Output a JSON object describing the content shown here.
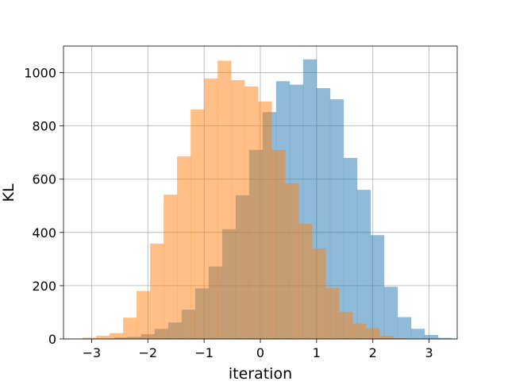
{
  "chart_data": {
    "type": "histogram",
    "xlabel": "iteration",
    "ylabel": "KL",
    "xlim": [
      -3.5,
      3.5
    ],
    "ylim": [
      0,
      1100
    ],
    "xticks": [
      -3,
      -2,
      -1,
      0,
      1,
      2,
      3
    ],
    "xtick_labels": [
      "−3",
      "−2",
      "−1",
      "0",
      "1",
      "2",
      "3"
    ],
    "yticks": [
      0,
      200,
      400,
      600,
      800,
      1000
    ],
    "ytick_labels": [
      "0",
      "200",
      "400",
      "600",
      "800",
      "1000"
    ],
    "grid": true,
    "legend": false,
    "series": [
      {
        "color": "#1f77b4",
        "alpha": 0.5,
        "bins": [
          {
            "x0": -2.6,
            "x1": -2.36,
            "count": 5
          },
          {
            "x0": -2.36,
            "x1": -2.12,
            "count": 8
          },
          {
            "x0": -2.12,
            "x1": -1.88,
            "count": 18
          },
          {
            "x0": -1.88,
            "x1": -1.64,
            "count": 38
          },
          {
            "x0": -1.64,
            "x1": -1.4,
            "count": 62
          },
          {
            "x0": -1.4,
            "x1": -1.16,
            "count": 110
          },
          {
            "x0": -1.16,
            "x1": -0.92,
            "count": 190
          },
          {
            "x0": -0.92,
            "x1": -0.68,
            "count": 272
          },
          {
            "x0": -0.68,
            "x1": -0.44,
            "count": 412
          },
          {
            "x0": -0.44,
            "x1": -0.2,
            "count": 540
          },
          {
            "x0": -0.2,
            "x1": 0.04,
            "count": 710
          },
          {
            "x0": 0.04,
            "x1": 0.28,
            "count": 852
          },
          {
            "x0": 0.28,
            "x1": 0.52,
            "count": 968
          },
          {
            "x0": 0.52,
            "x1": 0.76,
            "count": 955
          },
          {
            "x0": 0.76,
            "x1": 1.0,
            "count": 1050
          },
          {
            "x0": 1.0,
            "x1": 1.24,
            "count": 942
          },
          {
            "x0": 1.24,
            "x1": 1.48,
            "count": 900
          },
          {
            "x0": 1.48,
            "x1": 1.72,
            "count": 680
          },
          {
            "x0": 1.72,
            "x1": 1.96,
            "count": 560
          },
          {
            "x0": 1.96,
            "x1": 2.2,
            "count": 390
          },
          {
            "x0": 2.2,
            "x1": 2.44,
            "count": 196
          },
          {
            "x0": 2.44,
            "x1": 2.68,
            "count": 82
          },
          {
            "x0": 2.68,
            "x1": 2.92,
            "count": 38
          },
          {
            "x0": 2.92,
            "x1": 3.16,
            "count": 15
          },
          {
            "x0": 3.16,
            "x1": 3.4,
            "count": 4
          }
        ]
      },
      {
        "color": "#ff7f0e",
        "alpha": 0.5,
        "bins": [
          {
            "x0": -3.16,
            "x1": -2.92,
            "count": 5
          },
          {
            "x0": -2.92,
            "x1": -2.68,
            "count": 12
          },
          {
            "x0": -2.68,
            "x1": -2.44,
            "count": 22
          },
          {
            "x0": -2.44,
            "x1": -2.2,
            "count": 80
          },
          {
            "x0": -2.2,
            "x1": -1.96,
            "count": 180
          },
          {
            "x0": -1.96,
            "x1": -1.72,
            "count": 358
          },
          {
            "x0": -1.72,
            "x1": -1.48,
            "count": 542
          },
          {
            "x0": -1.48,
            "x1": -1.24,
            "count": 686
          },
          {
            "x0": -1.24,
            "x1": -1.0,
            "count": 862
          },
          {
            "x0": -1.0,
            "x1": -0.76,
            "count": 978
          },
          {
            "x0": -0.76,
            "x1": -0.52,
            "count": 1045
          },
          {
            "x0": -0.52,
            "x1": -0.28,
            "count": 972
          },
          {
            "x0": -0.28,
            "x1": -0.04,
            "count": 948
          },
          {
            "x0": -0.04,
            "x1": 0.2,
            "count": 892
          },
          {
            "x0": 0.2,
            "x1": 0.44,
            "count": 710
          },
          {
            "x0": 0.44,
            "x1": 0.68,
            "count": 585
          },
          {
            "x0": 0.68,
            "x1": 0.92,
            "count": 432
          },
          {
            "x0": 0.92,
            "x1": 1.16,
            "count": 340
          },
          {
            "x0": 1.16,
            "x1": 1.4,
            "count": 192
          },
          {
            "x0": 1.4,
            "x1": 1.64,
            "count": 102
          },
          {
            "x0": 1.64,
            "x1": 1.88,
            "count": 58
          },
          {
            "x0": 1.88,
            "x1": 2.12,
            "count": 40
          },
          {
            "x0": 2.12,
            "x1": 2.36,
            "count": 12
          },
          {
            "x0": 2.36,
            "x1": 2.6,
            "count": 3
          }
        ]
      }
    ]
  }
}
